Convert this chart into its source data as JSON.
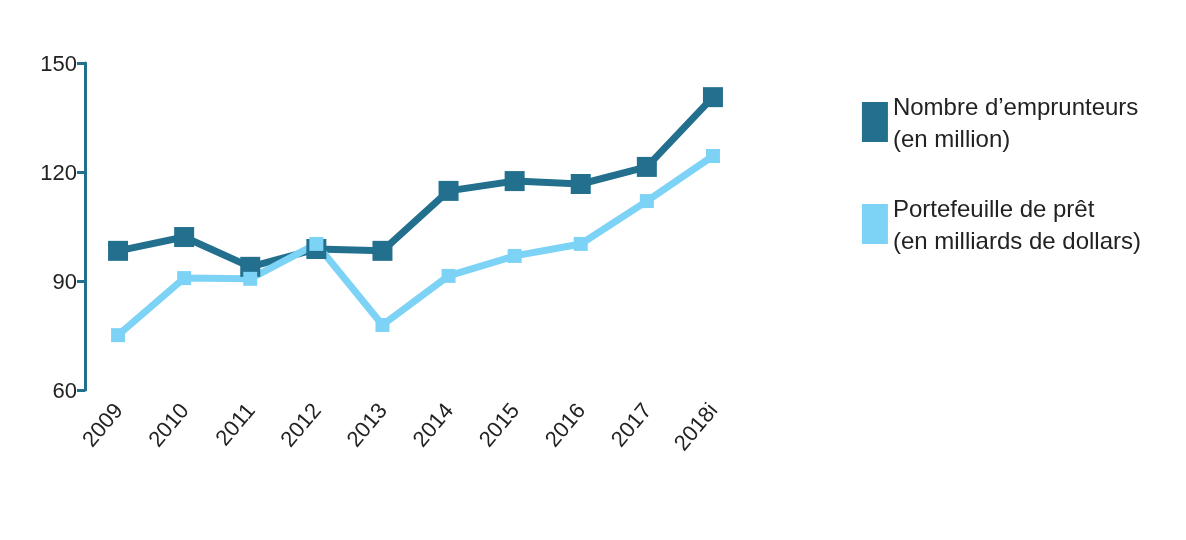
{
  "chart_data": {
    "type": "line",
    "categories": [
      "2009",
      "2010",
      "2011",
      "2012",
      "2013",
      "2014",
      "2015",
      "2016",
      "2017",
      "2018i"
    ],
    "series": [
      {
        "name": "Nombre d’emprunteurs\n(en million)",
        "color": "#226f8e",
        "values": [
          98.3,
          102.1,
          93.9,
          98.8,
          98.3,
          114.8,
          117.5,
          116.7,
          121.4,
          140.6
        ]
      },
      {
        "name": "Portefeuille de prêt\n(en milliards de dollars)",
        "color": "#7dd3f5",
        "values": [
          75.1,
          90.8,
          90.6,
          100.2,
          77.9,
          91.4,
          96.9,
          100.2,
          112,
          124.4
        ]
      }
    ],
    "ylim": [
      60,
      150
    ],
    "yticks": [
      60,
      90,
      120,
      150
    ],
    "grid": false,
    "legend": "right",
    "marker": "square",
    "line_style": "solid"
  }
}
